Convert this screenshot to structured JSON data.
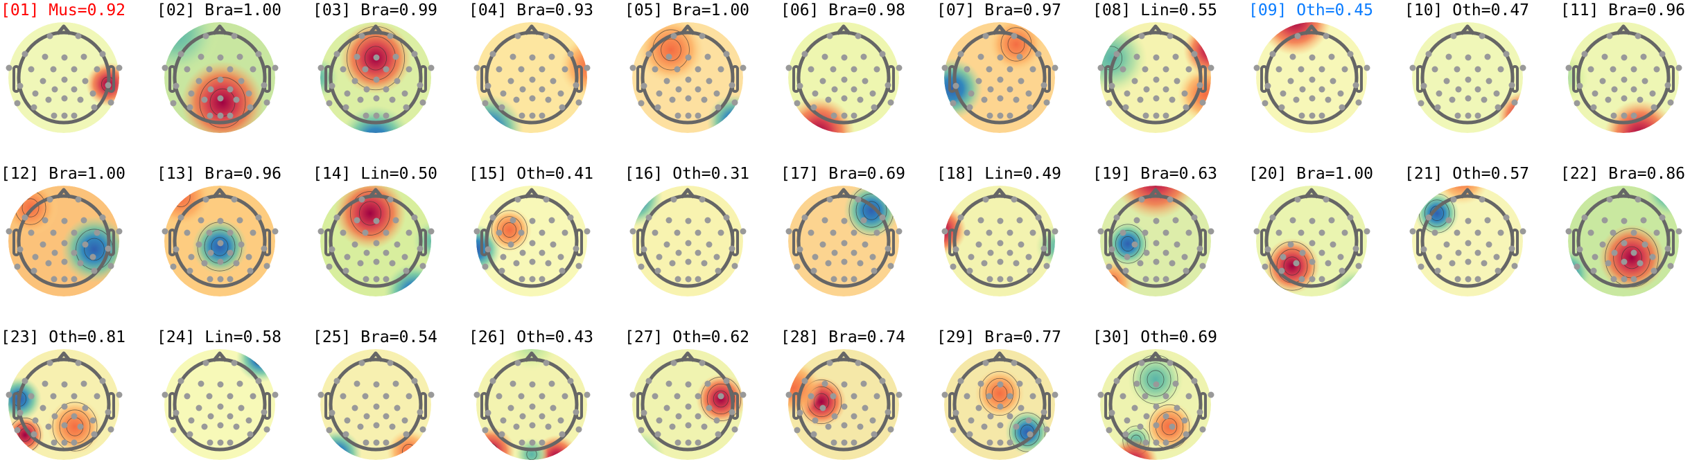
{
  "colors": {
    "default_title": "#000000",
    "muscle_title": "#ff0000",
    "selected_title": "#0a7cff",
    "electrode": "#999999",
    "head_outline": "#666666"
  },
  "colormap": "Spectral_r",
  "components": [
    {
      "title": "[01] Mus=0.92",
      "label": "Mus",
      "score": 0.92,
      "title_color": "#ff0000"
    },
    {
      "title": "[02] Bra=1.00",
      "label": "Bra",
      "score": 1.0
    },
    {
      "title": "[03] Bra=0.99",
      "label": "Bra",
      "score": 0.99
    },
    {
      "title": "[04] Bra=0.93",
      "label": "Bra",
      "score": 0.93
    },
    {
      "title": "[05] Bra=1.00",
      "label": "Bra",
      "score": 1.0
    },
    {
      "title": "[06] Bra=0.98",
      "label": "Bra",
      "score": 0.98
    },
    {
      "title": "[07] Bra=0.97",
      "label": "Bra",
      "score": 0.97
    },
    {
      "title": "[08] Lin=0.55",
      "label": "Lin",
      "score": 0.55
    },
    {
      "title": "[09] Oth=0.45",
      "label": "Oth",
      "score": 0.45,
      "title_color": "#0a7cff"
    },
    {
      "title": "[10] Oth=0.47",
      "label": "Oth",
      "score": 0.47
    },
    {
      "title": "[11] Bra=0.96",
      "label": "Bra",
      "score": 0.96
    },
    {
      "title": "[12] Bra=1.00",
      "label": "Bra",
      "score": 1.0
    },
    {
      "title": "[13] Bra=0.96",
      "label": "Bra",
      "score": 0.96
    },
    {
      "title": "[14] Lin=0.50",
      "label": "Lin",
      "score": 0.5
    },
    {
      "title": "[15] Oth=0.41",
      "label": "Oth",
      "score": 0.41
    },
    {
      "title": "[16] Oth=0.31",
      "label": "Oth",
      "score": 0.31
    },
    {
      "title": "[17] Bra=0.69",
      "label": "Bra",
      "score": 0.69
    },
    {
      "title": "[18] Lin=0.49",
      "label": "Lin",
      "score": 0.49
    },
    {
      "title": "[19] Bra=0.63",
      "label": "Bra",
      "score": 0.63
    },
    {
      "title": "[20] Bra=1.00",
      "label": "Bra",
      "score": 1.0
    },
    {
      "title": "[21] Oth=0.57",
      "label": "Oth",
      "score": 0.57
    },
    {
      "title": "[22] Bra=0.86",
      "label": "Bra",
      "score": 0.86
    },
    {
      "title": "[23] Oth=0.81",
      "label": "Oth",
      "score": 0.81
    },
    {
      "title": "[24] Lin=0.58",
      "label": "Lin",
      "score": 0.58
    },
    {
      "title": "[25] Bra=0.54",
      "label": "Bra",
      "score": 0.54
    },
    {
      "title": "[26] Oth=0.43",
      "label": "Oth",
      "score": 0.43
    },
    {
      "title": "[27] Oth=0.62",
      "label": "Oth",
      "score": 0.62
    },
    {
      "title": "[28] Bra=0.74",
      "label": "Bra",
      "score": 0.74
    },
    {
      "title": "[29] Bra=0.77",
      "label": "Bra",
      "score": 0.77
    },
    {
      "title": "[30] Oth=0.69",
      "label": "Oth",
      "score": 0.69
    }
  ]
}
